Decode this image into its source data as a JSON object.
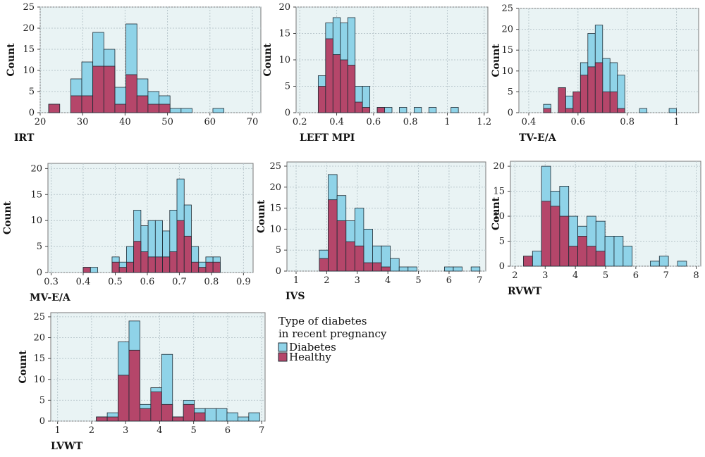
{
  "colors": {
    "diabetes": "#8fd3e8",
    "healthy": "#b5466a",
    "panel_bg": "#e9f3f4",
    "grid": "#b9c7cc",
    "bar_edge": "#1c2a33"
  },
  "legend": {
    "title_line1": "Type of diabetes",
    "title_line2": "in recent pregnancy",
    "items": [
      "Diabetes",
      "Healthy"
    ]
  },
  "chart_data": [
    {
      "type": "bar",
      "xlabel": "IRT",
      "ylabel": "Count",
      "xlim": [
        20,
        72
      ],
      "ylim": [
        0,
        25
      ],
      "xticks": [
        20,
        30,
        40,
        50,
        60,
        70
      ],
      "yticks": [
        0,
        5,
        10,
        15,
        20,
        25
      ],
      "bin_width": 2.6,
      "bin_starts": [
        22,
        27.2,
        29.8,
        32.4,
        35.0,
        37.6,
        40.2,
        42.8,
        45.4,
        48.0,
        50.6,
        53.2,
        60.7
      ],
      "series": [
        {
          "name": "Diabetes",
          "values": [
            2,
            8,
            12,
            19,
            15,
            6,
            21,
            8,
            5,
            4,
            1,
            1,
            1
          ]
        },
        {
          "name": "Healthy",
          "values": [
            2,
            4,
            4,
            11,
            11,
            2,
            9,
            4,
            2,
            2,
            0,
            0,
            0
          ]
        }
      ]
    },
    {
      "type": "bar",
      "xlabel": "LEFT MPI",
      "ylabel": "Count",
      "xlim": [
        0.18,
        1.22
      ],
      "ylim": [
        0,
        20
      ],
      "xticks": [
        0.2,
        0.4,
        0.6,
        0.8,
        1.0,
        1.2
      ],
      "yticks": [
        0,
        5,
        10,
        15,
        20
      ],
      "bin_width": 0.04,
      "bin_starts": [
        0.3,
        0.34,
        0.38,
        0.42,
        0.46,
        0.5,
        0.54,
        0.62,
        0.66,
        0.74,
        0.82,
        0.9,
        1.02
      ],
      "series": [
        {
          "name": "Diabetes",
          "values": [
            7,
            17,
            18,
            17,
            18,
            5,
            5,
            1,
            1,
            1,
            1,
            1,
            1
          ]
        },
        {
          "name": "Healthy",
          "values": [
            5,
            14,
            11,
            10,
            9,
            2,
            1,
            1,
            0,
            0,
            0,
            0,
            0
          ]
        }
      ]
    },
    {
      "type": "bar",
      "xlabel": "TV-E/A",
      "ylabel": "Count",
      "xlim": [
        0.36,
        1.09
      ],
      "ylim": [
        0,
        25
      ],
      "xticks": [
        0.4,
        0.6,
        0.8,
        1.0
      ],
      "yticks": [
        0,
        5,
        10,
        15,
        20,
        25
      ],
      "bin_width": 0.03,
      "bin_starts": [
        0.46,
        0.52,
        0.55,
        0.58,
        0.61,
        0.64,
        0.67,
        0.7,
        0.73,
        0.76,
        0.85,
        0.97
      ],
      "series": [
        {
          "name": "Diabetes",
          "values": [
            2,
            1,
            4,
            5,
            12,
            19,
            21,
            13,
            12,
            9,
            1,
            1
          ]
        },
        {
          "name": "Healthy",
          "values": [
            1,
            6,
            1,
            5,
            9,
            11,
            12,
            5,
            5,
            1,
            0,
            0
          ]
        }
      ]
    },
    {
      "type": "bar",
      "xlabel": "MV-E/A",
      "ylabel": "Count",
      "xlim": [
        0.29,
        0.93
      ],
      "ylim": [
        0,
        21
      ],
      "xticks": [
        0.3,
        0.4,
        0.5,
        0.6,
        0.7,
        0.8,
        0.9
      ],
      "yticks": [
        0,
        5,
        10,
        15,
        20
      ],
      "bin_width": 0.0225,
      "bin_starts": [
        0.4,
        0.4225,
        0.49,
        0.5125,
        0.535,
        0.5575,
        0.58,
        0.6025,
        0.625,
        0.6475,
        0.67,
        0.6925,
        0.715,
        0.7375,
        0.76,
        0.7825,
        0.805
      ],
      "series": [
        {
          "name": "Diabetes",
          "values": [
            1,
            1,
            3,
            2,
            5,
            12,
            9,
            10,
            10,
            8,
            12,
            18,
            13,
            5,
            2,
            3,
            3
          ]
        },
        {
          "name": "Healthy",
          "values": [
            1,
            0,
            2,
            1,
            2,
            6,
            4,
            3,
            3,
            3,
            4,
            10,
            7,
            2,
            1,
            2,
            2
          ]
        }
      ]
    },
    {
      "type": "bar",
      "xlabel": "IVS",
      "ylabel": "Count",
      "xlim": [
        0.7,
        7.2
      ],
      "ylim": [
        0,
        26
      ],
      "xticks": [
        1,
        2,
        3,
        4,
        5,
        6,
        7
      ],
      "yticks": [
        0,
        5,
        10,
        15,
        20,
        25
      ],
      "bin_width": 0.29,
      "bin_starts": [
        1.76,
        2.05,
        2.34,
        2.63,
        2.92,
        3.21,
        3.5,
        3.79,
        4.08,
        4.37,
        4.66,
        5.85,
        6.14,
        6.72
      ],
      "series": [
        {
          "name": "Diabetes",
          "values": [
            5,
            23,
            18,
            12,
            15,
            10,
            6,
            6,
            3,
            1,
            1,
            1,
            1,
            1
          ]
        },
        {
          "name": "Healthy",
          "values": [
            3,
            17,
            12,
            7,
            6,
            2,
            2,
            1,
            0,
            0,
            0,
            0,
            0,
            0
          ]
        }
      ]
    },
    {
      "type": "bar",
      "xlabel": "RVWT",
      "ylabel": "Count",
      "xlim": [
        1.85,
        8.15
      ],
      "ylim": [
        0,
        21
      ],
      "xticks": [
        2,
        3,
        4,
        5,
        6,
        7,
        8
      ],
      "yticks": [
        0,
        5,
        10,
        15,
        20
      ],
      "bin_width": 0.3,
      "bin_starts": [
        2.28,
        2.58,
        2.88,
        3.18,
        3.48,
        3.78,
        4.08,
        4.38,
        4.68,
        4.98,
        5.28,
        5.58,
        6.48,
        6.78,
        7.38
      ],
      "series": [
        {
          "name": "Diabetes",
          "values": [
            2,
            3,
            20,
            15,
            16,
            10,
            8,
            10,
            9,
            6,
            6,
            4,
            1,
            2,
            1
          ]
        },
        {
          "name": "Healthy",
          "values": [
            2,
            0,
            13,
            12,
            10,
            4,
            6,
            4,
            3,
            0,
            0,
            0,
            0,
            0,
            0
          ]
        }
      ]
    },
    {
      "type": "bar",
      "xlabel": "LVWT",
      "ylabel": "Count",
      "xlim": [
        0.8,
        7.1
      ],
      "ylim": [
        0,
        26
      ],
      "xticks": [
        1,
        2,
        3,
        4,
        5,
        6,
        7
      ],
      "yticks": [
        0,
        5,
        10,
        15,
        20,
        25
      ],
      "bin_width": 0.32,
      "bin_starts": [
        2.14,
        2.46,
        2.78,
        3.1,
        3.42,
        3.74,
        4.06,
        4.38,
        4.7,
        5.02,
        5.34,
        5.66,
        5.98,
        6.3,
        6.62
      ],
      "series": [
        {
          "name": "Diabetes",
          "values": [
            1,
            2,
            19,
            24,
            4,
            8,
            16,
            1,
            5,
            3,
            3,
            3,
            2,
            1,
            2
          ]
        },
        {
          "name": "Healthy",
          "values": [
            1,
            1,
            11,
            17,
            3,
            7,
            4,
            1,
            4,
            2,
            0,
            0,
            0,
            0,
            0
          ]
        }
      ]
    }
  ]
}
